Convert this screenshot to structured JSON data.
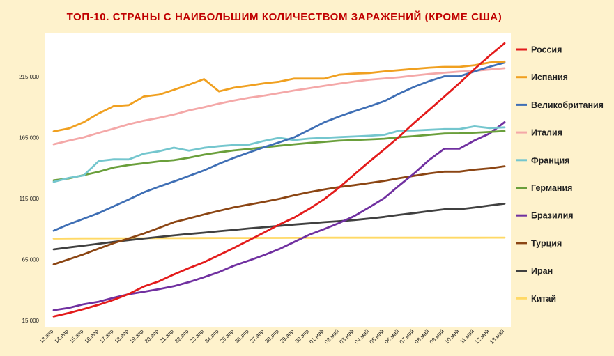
{
  "chart_data": {
    "type": "line",
    "title": "ТОП-10. СТРАНЫ С НАИБОЛЬШИМ КОЛИЧЕСТВОМ ЗАРАЖЕНИЙ (КРОМЕ США)",
    "xlabel": "",
    "ylabel": "",
    "ylim": [
      15000,
      250000
    ],
    "yticks": [
      15000,
      65000,
      115000,
      165000,
      215000
    ],
    "ytick_labels": [
      "15 000",
      "65 000",
      "115 000",
      "165 000",
      "215 000"
    ],
    "grid": false,
    "legend_position": "right",
    "categories": [
      "13.апр",
      "14.апр",
      "15.апр",
      "16.апр",
      "17.апр",
      "18.апр",
      "19.апр",
      "20.апр",
      "21.апр",
      "22.апр",
      "23.апр",
      "24.апр",
      "25.апр",
      "26.апр",
      "27.апр",
      "28.апр",
      "29.апр",
      "30.апр",
      "01.май",
      "02.май",
      "03.май",
      "04.май",
      "05.май",
      "06.май",
      "07.май",
      "08.май",
      "09.май",
      "10.май",
      "11.май",
      "12.май",
      "13.май"
    ],
    "series": [
      {
        "name": "Россия",
        "color": "#E31B1B",
        "values": [
          18300,
          21100,
          24400,
          27900,
          32000,
          36800,
          42900,
          47100,
          52800,
          57999,
          62800,
          68600,
          74600,
          80900,
          87100,
          93600,
          99400,
          106500,
          114400,
          124100,
          134700,
          145300,
          155400,
          165900,
          177200,
          187900,
          198700,
          209700,
          221300,
          232200,
          242300
        ]
      },
      {
        "name": "Испания",
        "color": "#F0A020",
        "values": [
          170100,
          172500,
          177600,
          184900,
          190800,
          191700,
          198700,
          200200,
          204200,
          208400,
          213000,
          202900,
          205900,
          207600,
          209500,
          210800,
          213400,
          213400,
          213400,
          216600,
          217500,
          218000,
          219300,
          220300,
          221400,
          222400,
          223000,
          223000,
          224400,
          226600,
          227400
        ]
      },
      {
        "name": "Великобритания",
        "color": "#3F6FB5",
        "values": [
          88600,
          93900,
          98500,
          103100,
          108700,
          114200,
          120100,
          124700,
          129000,
          133500,
          138100,
          143500,
          148400,
          152800,
          157100,
          161100,
          165200,
          171300,
          177500,
          182300,
          186600,
          190600,
          194900,
          201100,
          206700,
          211400,
          215300,
          215300,
          219200,
          223100,
          226500
        ]
      },
      {
        "name": "Италия",
        "color": "#F4A8A8",
        "values": [
          159500,
          162500,
          165200,
          168900,
          172400,
          175900,
          178900,
          181200,
          183900,
          187300,
          189900,
          192900,
          195400,
          197700,
          199400,
          201500,
          203600,
          205500,
          207400,
          209300,
          211000,
          212500,
          213500,
          214500,
          215900,
          217200,
          218200,
          219100,
          219800,
          220800,
          221900
        ]
      },
      {
        "name": "Франция",
        "color": "#74C6CE",
        "values": [
          128700,
          131900,
          134000,
          145800,
          147200,
          147100,
          151800,
          153800,
          156700,
          154300,
          156600,
          158000,
          158900,
          159300,
          162300,
          164800,
          163000,
          164200,
          164800,
          165400,
          165900,
          166500,
          167300,
          170700,
          170800,
          171400,
          172000,
          172000,
          174200,
          172800,
          173400
        ]
      },
      {
        "name": "Германия",
        "color": "#6A9F3B",
        "values": [
          130000,
          131500,
          134200,
          137000,
          140500,
          142500,
          144000,
          145500,
          146500,
          148500,
          151000,
          152900,
          154500,
          155700,
          157000,
          158300,
          159500,
          160600,
          161500,
          162500,
          163000,
          163500,
          164100,
          165300,
          166200,
          167300,
          168300,
          168500,
          169000,
          169600,
          170300
        ]
      },
      {
        "name": "Бразилия",
        "color": "#7030A0",
        "values": [
          23400,
          25300,
          28300,
          30400,
          33700,
          36600,
          38600,
          40700,
          43100,
          46500,
          50500,
          54700,
          60000,
          64200,
          68600,
          73500,
          79400,
          85300,
          90000,
          95000,
          100600,
          107800,
          115400,
          125800,
          135800,
          146900,
          155900,
          155900,
          162700,
          168300,
          177600
        ]
      },
      {
        "name": "Турция",
        "color": "#8B4513",
        "values": [
          61000,
          65100,
          69300,
          74000,
          78500,
          82300,
          86300,
          90900,
          95600,
          98700,
          102000,
          104900,
          107800,
          110100,
          112300,
          114700,
          117600,
          120200,
          122400,
          124400,
          126000,
          127700,
          129500,
          131700,
          133700,
          135600,
          137100,
          137100,
          138700,
          139800,
          141500
        ]
      },
      {
        "name": "Иран",
        "color": "#404040",
        "values": [
          73300,
          74900,
          76400,
          77900,
          79500,
          80900,
          82200,
          83500,
          84800,
          85996,
          87000,
          88200,
          89300,
          90500,
          91500,
          92600,
          93700,
          94600,
          95600,
          96400,
          97400,
          98600,
          99970,
          101650,
          103135,
          104691,
          106220,
          106220,
          107603,
          109286,
          110767
        ]
      },
      {
        "name": "Китай",
        "color": "#FFD966",
        "values": [
          82160,
          82250,
          82300,
          82340,
          82370,
          82400,
          82440,
          82480,
          82500,
          82530,
          82600,
          82630,
          82650,
          82670,
          82690,
          82730,
          82750,
          82800,
          82860,
          82870,
          82880,
          82880,
          82880,
          82880,
          82890,
          82900,
          82900,
          82900,
          82900,
          82920,
          82930
        ]
      }
    ]
  }
}
